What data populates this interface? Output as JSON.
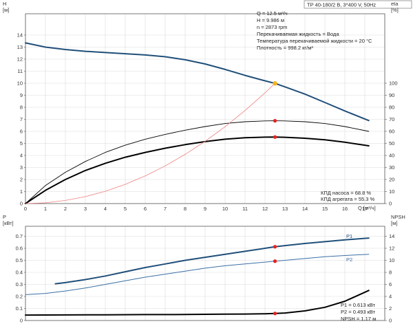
{
  "title": "TP 40-180/2 B, 3*400 V, 50Hz",
  "info_lines": [
    "Q = 12.5 м³/ч",
    "H = 9.986 м",
    "n = 2873 rpm",
    "Перекачиваемая жидкость = Вода",
    "Температура перекачиваемой жидкости = 20 °C",
    "Плотность = 998.2 кг/м³"
  ],
  "eff_lines": [
    "КПД насоса = 68.8 %",
    "КПД агрегата = 55.3 %"
  ],
  "power_lines": [
    "P1 = 0.613 кВт",
    "P2 = 0.493 кВт",
    "NPSH = 1.17 м"
  ],
  "colors": {
    "blue": "#1f4e79",
    "blue_light": "#3a6ea5",
    "black": "#000000",
    "red_line": "#f08080",
    "marker": "#e8201c",
    "marker_op": "#f5b31c",
    "grid": "#d9d9d9"
  },
  "chart_data": [
    {
      "type": "line",
      "panel": "top",
      "left_axis": {
        "label": "H",
        "unit": "[м]",
        "ylim": [
          0,
          15
        ],
        "ticks": [
          "0",
          "1",
          "2",
          "3",
          "4",
          "5",
          "6",
          "7",
          "8",
          "9",
          "10",
          "11",
          "12",
          "13",
          "14"
        ]
      },
      "right_axis": {
        "label": "eta",
        "unit": "[%]",
        "ylim": [
          0,
          150
        ],
        "ticks": [
          "0",
          "10",
          "20",
          "30",
          "40",
          "50",
          "60",
          "70",
          "80",
          "90",
          "100"
        ]
      },
      "x_axis": {
        "label": "Q [м³/ч]",
        "xlim": [
          0,
          18
        ],
        "ticks": [
          "0",
          "1",
          "2",
          "3",
          "4",
          "5",
          "6",
          "7",
          "8",
          "9",
          "10",
          "11",
          "12",
          "13",
          "14",
          "15",
          "16",
          "17"
        ]
      },
      "series": [
        {
          "role": "H",
          "axis": "left",
          "style": "blue-thick",
          "points": [
            [
              0,
              13.35
            ],
            [
              1,
              13.0
            ],
            [
              2,
              12.8
            ],
            [
              3,
              12.65
            ],
            [
              4,
              12.55
            ],
            [
              5,
              12.45
            ],
            [
              6,
              12.35
            ],
            [
              7,
              12.2
            ],
            [
              8,
              11.95
            ],
            [
              9,
              11.6
            ],
            [
              10,
              11.15
            ],
            [
              11,
              10.65
            ],
            [
              12,
              10.2
            ],
            [
              12.5,
              9.986
            ],
            [
              13,
              9.7
            ],
            [
              14,
              9.1
            ],
            [
              15,
              8.4
            ],
            [
              16,
              7.7
            ],
            [
              17.2,
              6.9
            ]
          ]
        },
        {
          "role": "eta-pump",
          "axis": "right",
          "style": "black-thin",
          "points": [
            [
              0,
              0
            ],
            [
              1,
              15
            ],
            [
              2,
              26
            ],
            [
              3,
              35
            ],
            [
              4,
              42.5
            ],
            [
              5,
              48.5
            ],
            [
              6,
              53.5
            ],
            [
              7,
              57.5
            ],
            [
              8,
              61
            ],
            [
              9,
              64
            ],
            [
              10,
              66.5
            ],
            [
              11,
              68
            ],
            [
              12,
              68.7
            ],
            [
              12.5,
              68.8
            ],
            [
              13,
              68.7
            ],
            [
              14,
              68
            ],
            [
              15,
              66.5
            ],
            [
              16,
              64
            ],
            [
              17.2,
              60
            ]
          ]
        },
        {
          "role": "eta-unit",
          "axis": "right",
          "style": "black-thick",
          "points": [
            [
              0,
              0
            ],
            [
              1,
              11
            ],
            [
              2,
              20
            ],
            [
              3,
              27.5
            ],
            [
              4,
              33.5
            ],
            [
              5,
              38.5
            ],
            [
              6,
              42.5
            ],
            [
              7,
              46
            ],
            [
              8,
              49
            ],
            [
              9,
              51.5
            ],
            [
              10,
              53.5
            ],
            [
              11,
              54.7
            ],
            [
              12,
              55.2
            ],
            [
              12.5,
              55.3
            ],
            [
              13,
              55.1
            ],
            [
              14,
              54.3
            ],
            [
              15,
              53
            ],
            [
              16,
              51
            ],
            [
              17.2,
              48
            ]
          ]
        },
        {
          "role": "system",
          "axis": "left",
          "style": "red-thin",
          "points": [
            [
              0,
              0
            ],
            [
              1,
              0.06
            ],
            [
              2,
              0.26
            ],
            [
              3,
              0.58
            ],
            [
              4,
              1.02
            ],
            [
              5,
              1.6
            ],
            [
              6,
              2.3
            ],
            [
              7,
              3.13
            ],
            [
              8,
              4.09
            ],
            [
              9,
              5.17
            ],
            [
              10,
              6.39
            ],
            [
              11,
              7.73
            ],
            [
              12,
              9.2
            ],
            [
              12.5,
              9.986
            ]
          ]
        }
      ],
      "markers": [
        {
          "axis": "left",
          "x": 12.5,
          "y": 9.986,
          "color": "marker_op"
        },
        {
          "axis": "right",
          "x": 12.5,
          "y": 68.8,
          "color": "marker"
        },
        {
          "axis": "right",
          "x": 12.5,
          "y": 55.3,
          "color": "marker"
        }
      ]
    },
    {
      "type": "line",
      "panel": "bottom",
      "left_axis": {
        "label": "P",
        "unit": "[кВт]",
        "ylim": [
          0,
          0.75
        ],
        "ticks": [
          "0",
          "0.1",
          "0.2",
          "0.3",
          "0.4",
          "0.5",
          "0.6",
          "0.7"
        ]
      },
      "right_axis": {
        "label": "NPSH",
        "unit": "[м]",
        "ylim": [
          0,
          15
        ],
        "ticks": [
          "0",
          "2",
          "4",
          "6",
          "8",
          "10",
          "12",
          "14"
        ]
      },
      "x_axis": {
        "label": "",
        "xlim": [
          0,
          18
        ],
        "ticks": []
      },
      "series": [
        {
          "role": "P1",
          "name": "P1",
          "axis": "left",
          "style": "blue-thick",
          "points": [
            [
              1.5,
              0.305
            ],
            [
              2,
              0.315
            ],
            [
              3,
              0.34
            ],
            [
              4,
              0.37
            ],
            [
              5,
              0.405
            ],
            [
              6,
              0.44
            ],
            [
              7,
              0.47
            ],
            [
              8,
              0.5
            ],
            [
              9,
              0.525
            ],
            [
              10,
              0.55
            ],
            [
              11,
              0.575
            ],
            [
              12,
              0.6
            ],
            [
              12.5,
              0.613
            ],
            [
              13,
              0.622
            ],
            [
              14,
              0.64
            ],
            [
              15,
              0.655
            ],
            [
              16,
              0.67
            ],
            [
              17.2,
              0.685
            ]
          ]
        },
        {
          "role": "P2",
          "name": "P2",
          "axis": "left",
          "style": "blue-thin",
          "points": [
            [
              0,
              0.215
            ],
            [
              1,
              0.225
            ],
            [
              2,
              0.245
            ],
            [
              3,
              0.27
            ],
            [
              4,
              0.3
            ],
            [
              5,
              0.33
            ],
            [
              6,
              0.36
            ],
            [
              7,
              0.385
            ],
            [
              8,
              0.41
            ],
            [
              9,
              0.435
            ],
            [
              10,
              0.455
            ],
            [
              11,
              0.47
            ],
            [
              12,
              0.485
            ],
            [
              12.5,
              0.493
            ],
            [
              13,
              0.5
            ],
            [
              14,
              0.515
            ],
            [
              15,
              0.53
            ],
            [
              16,
              0.54
            ],
            [
              17.2,
              0.55
            ]
          ]
        },
        {
          "role": "NPSH",
          "axis": "right",
          "style": "black-thick",
          "points": [
            [
              0,
              0.9
            ],
            [
              2,
              0.92
            ],
            [
              4,
              0.95
            ],
            [
              6,
              0.98
            ],
            [
              8,
              1.0
            ],
            [
              10,
              1.05
            ],
            [
              11,
              1.08
            ],
            [
              12,
              1.12
            ],
            [
              12.5,
              1.17
            ],
            [
              13,
              1.25
            ],
            [
              14,
              1.6
            ],
            [
              15,
              2.2
            ],
            [
              16,
              3.2
            ],
            [
              17.2,
              5.0
            ]
          ]
        }
      ],
      "markers": [
        {
          "axis": "left",
          "x": 12.5,
          "y": 0.613,
          "color": "marker"
        },
        {
          "axis": "left",
          "x": 12.5,
          "y": 0.493,
          "color": "marker"
        },
        {
          "axis": "right",
          "x": 12.5,
          "y": 1.17,
          "color": "marker"
        }
      ]
    }
  ]
}
